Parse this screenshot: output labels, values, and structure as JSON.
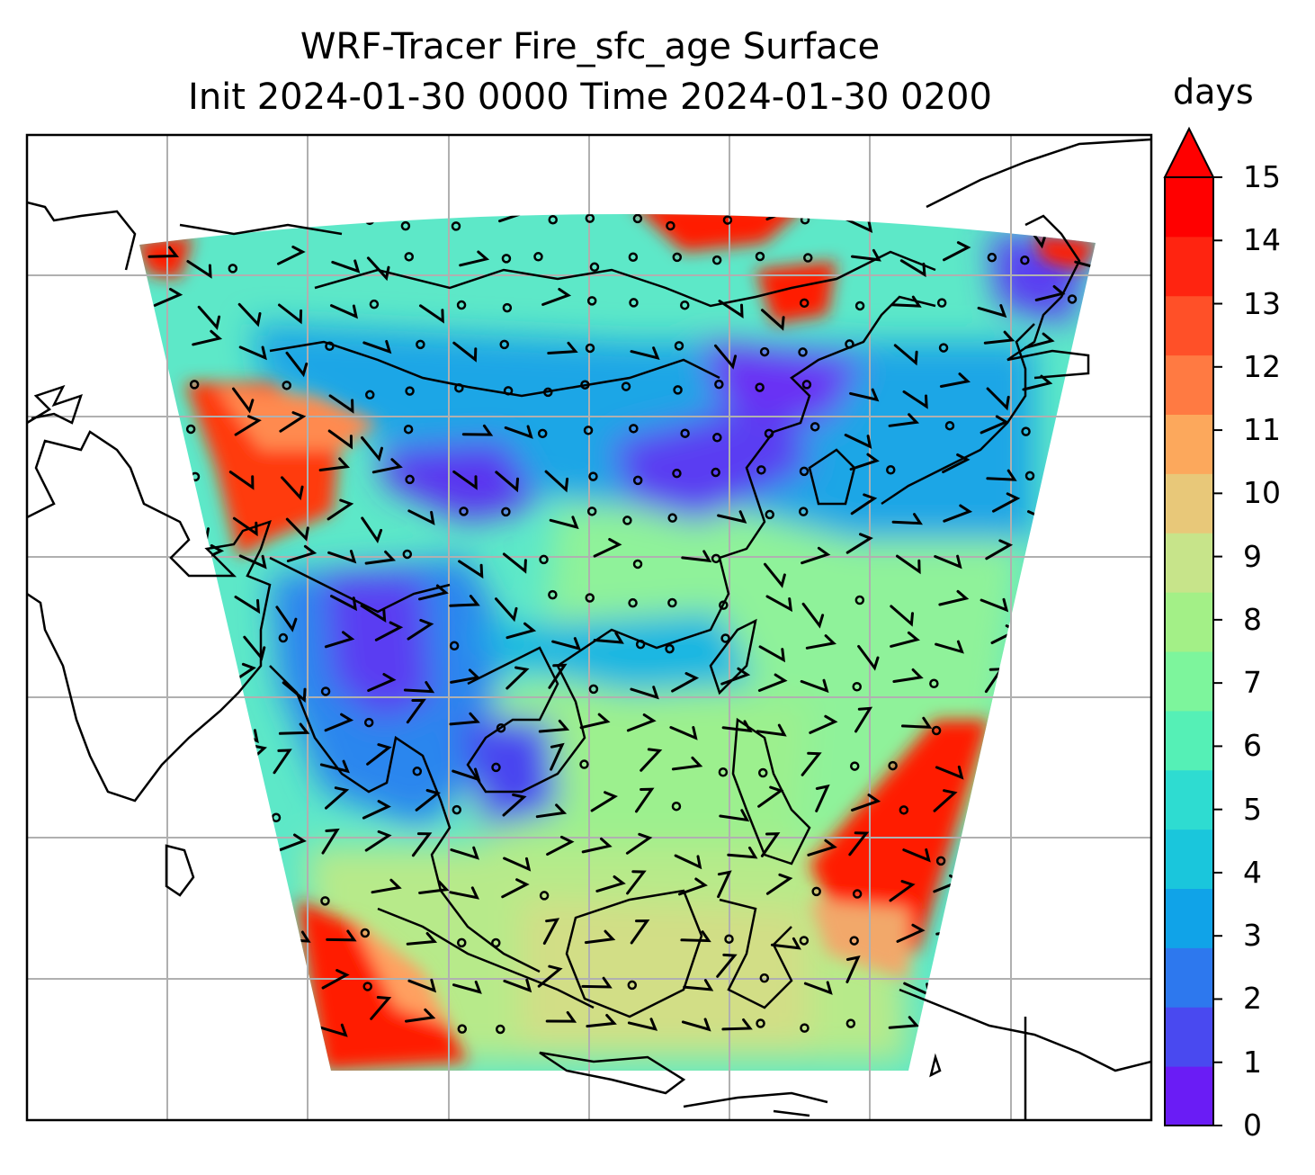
{
  "title": {
    "line1": "WRF-Tracer Fire_sfc_age Surface",
    "line2": "Init 2024-01-30 0000 Time 2024-01-30 0200"
  },
  "colorbar": {
    "units": "days",
    "ticks": [
      "0",
      "1",
      "2",
      "3",
      "4",
      "5",
      "6",
      "7",
      "8",
      "9",
      "10",
      "11",
      "12",
      "13",
      "14",
      "15"
    ],
    "colors": [
      "#6a1cf5",
      "#4949f0",
      "#2d78ee",
      "#10a3e8",
      "#1ac6dc",
      "#2edcd1",
      "#55f0b6",
      "#7df59c",
      "#a3f087",
      "#c7e48a",
      "#e8c879",
      "#fca85c",
      "#ff7a42",
      "#ff5028",
      "#ff2410",
      "#ff0000"
    ],
    "extend": "max"
  },
  "map": {
    "field": "Fire_sfc_age",
    "level": "Surface",
    "grid": true,
    "overlays": [
      "coastlines",
      "wind-barbs",
      "calm-circles"
    ],
    "colors": {
      "background": "#ffffff",
      "gridline": "#b0b0b0",
      "coastline": "#000000",
      "very_old": "#ff0000",
      "old": "#fca85c",
      "medium": "#7df59c",
      "young": "#2d78ee",
      "very_young": "#6a1cf5"
    }
  }
}
